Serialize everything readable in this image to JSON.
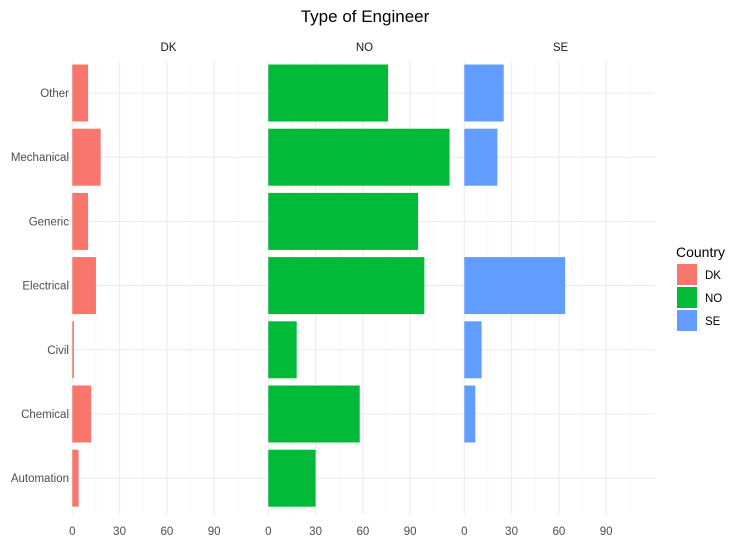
{
  "chart_data": {
    "type": "bar",
    "orientation": "horizontal",
    "title": "Type of Engineer",
    "xlabel": "",
    "ylabel": "",
    "categories": [
      "Other",
      "Mechanical",
      "Generic",
      "Electrical",
      "Civil",
      "Chemical",
      "Automation"
    ],
    "x_ticks": [
      0,
      30,
      60,
      90
    ],
    "xlim": [
      -4,
      121
    ],
    "grid": true,
    "legend": {
      "title": "Country",
      "position": "right",
      "entries": [
        "DK",
        "NO",
        "SE"
      ]
    },
    "panels": [
      {
        "name": "DK",
        "color": "#F8766D",
        "values": [
          10,
          18,
          10,
          15,
          1,
          12,
          4
        ]
      },
      {
        "name": "NO",
        "color": "#00BA38",
        "values": [
          76,
          115,
          95,
          99,
          18,
          58,
          30
        ]
      },
      {
        "name": "SE",
        "color": "#619CFF",
        "values": [
          25,
          21,
          0,
          64,
          11,
          7,
          0
        ]
      }
    ]
  }
}
